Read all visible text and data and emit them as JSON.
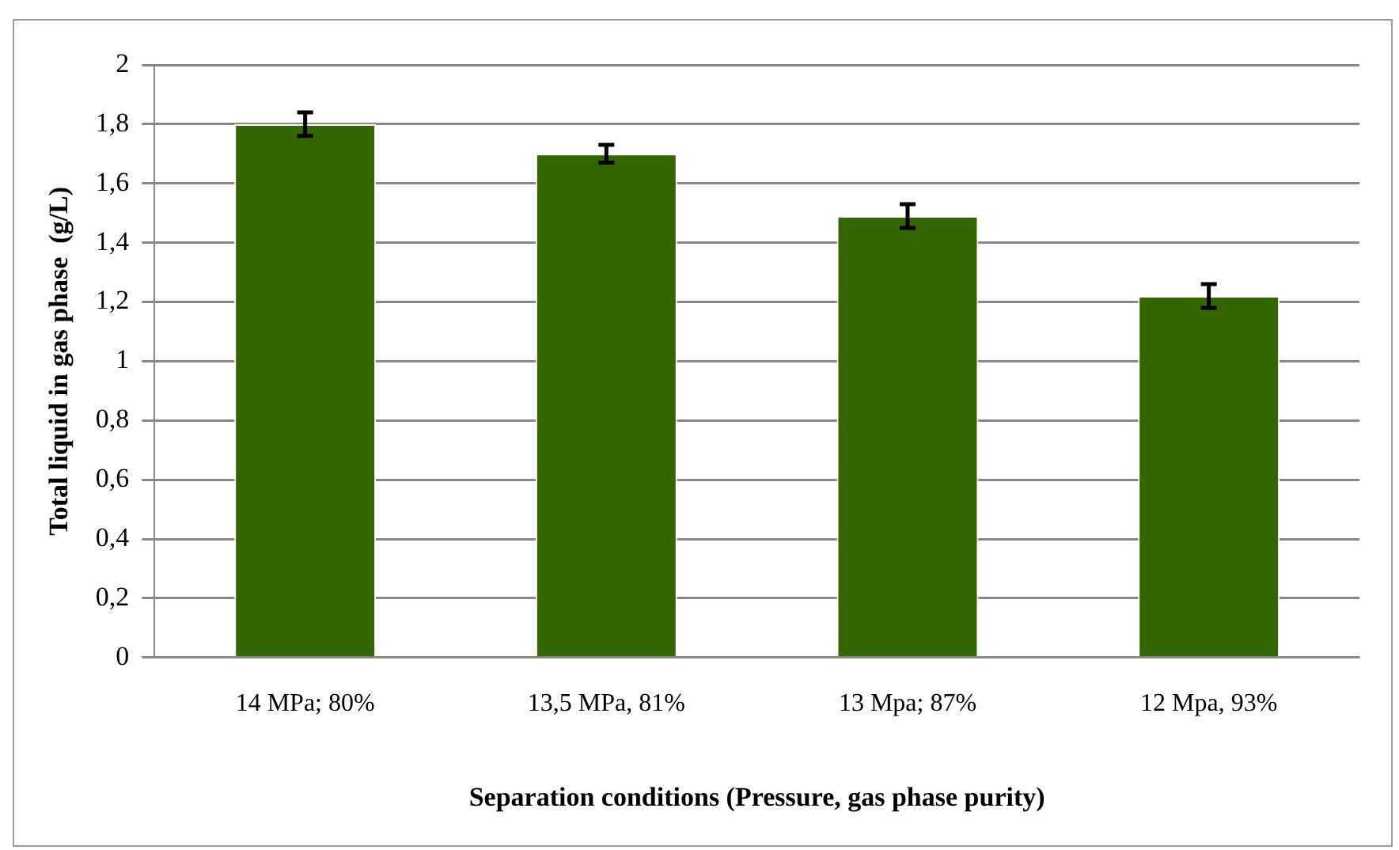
{
  "chart_data": {
    "type": "bar",
    "xlabel": "Separation conditions (Pressure, gas phase purity)",
    "ylabel": "Total liquid in gas phase  (g/L)",
    "categories": [
      "14 MPa; 80%",
      "13,5 MPa, 81%",
      "13 Mpa; 87%",
      "12 Mpa, 93%"
    ],
    "values": [
      1.8,
      1.7,
      1.49,
      1.22
    ],
    "errors": [
      0.04,
      0.03,
      0.04,
      0.04
    ],
    "color": "#336600",
    "ylim": [
      0,
      2
    ],
    "yticks": [
      0,
      {
        "value": 0.2,
        "label": "0,2"
      },
      {
        "value": 0.4,
        "label": "0,4"
      },
      {
        "value": 0.6,
        "label": "0,6"
      },
      {
        "value": 0.8,
        "label": "0,8"
      },
      1,
      {
        "value": 1.2,
        "label": "1,2"
      },
      {
        "value": 1.4,
        "label": "1,4"
      },
      {
        "value": 1.6,
        "label": "1,6"
      },
      {
        "value": 1.8,
        "label": "1,8"
      },
      2
    ],
    "grid": "y",
    "legend": false
  }
}
